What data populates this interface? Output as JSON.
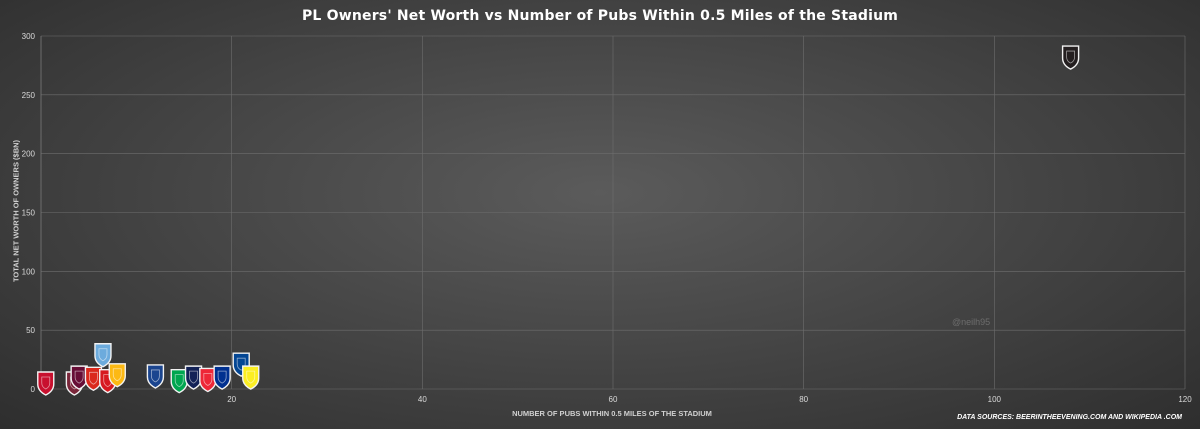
{
  "chart_data": {
    "type": "scatter",
    "title": "PL Owners' Net Worth vs Number of Pubs Within 0.5 Miles of the Stadium",
    "xlabel": "NUMBER OF PUBS WITHIN 0.5 MILES OF THE STADIUM",
    "ylabel": "TOTAL NET WORTH OF OWNERS ($BN)",
    "xlim": [
      0,
      120
    ],
    "ylim": [
      0,
      300
    ],
    "x_ticks": [
      "20",
      "40",
      "60",
      "80",
      "100",
      "120"
    ],
    "y_ticks": [
      "0",
      "50",
      "100",
      "150",
      "200",
      "250",
      "300"
    ],
    "grid": true,
    "points": [
      {
        "x": 0.5,
        "y": 0,
        "color": "#c8102e",
        "icon": "club-crest-icon"
      },
      {
        "x": 3.5,
        "y": 0,
        "color": "#7a263a",
        "icon": "club-crest-icon"
      },
      {
        "x": 4,
        "y": 5,
        "color": "#670e36",
        "icon": "club-crest-icon"
      },
      {
        "x": 5.5,
        "y": 4,
        "color": "#da291c",
        "icon": "club-crest-icon"
      },
      {
        "x": 6.5,
        "y": 24,
        "color": "#6cabdd",
        "icon": "club-crest-icon"
      },
      {
        "x": 7,
        "y": 2,
        "color": "#d71920",
        "icon": "club-crest-icon"
      },
      {
        "x": 8,
        "y": 7,
        "color": "#fdb913",
        "icon": "club-crest-icon"
      },
      {
        "x": 12,
        "y": 6,
        "color": "#1b458f",
        "icon": "club-crest-icon"
      },
      {
        "x": 14.5,
        "y": 2,
        "color": "#00a650",
        "icon": "club-crest-icon"
      },
      {
        "x": 16,
        "y": 5,
        "color": "#132257",
        "icon": "club-crest-icon"
      },
      {
        "x": 17.5,
        "y": 3,
        "color": "#ee2737",
        "icon": "club-crest-icon"
      },
      {
        "x": 19,
        "y": 5,
        "color": "#003090",
        "icon": "club-crest-icon"
      },
      {
        "x": 21,
        "y": 16,
        "color": "#034694",
        "icon": "club-crest-icon"
      },
      {
        "x": 22,
        "y": 5,
        "color": "#fbee23",
        "icon": "club-crest-icon"
      },
      {
        "x": 108,
        "y": 277,
        "color": "#241f20",
        "icon": "club-crest-icon"
      }
    ]
  },
  "footer": {
    "sources": "DATA SOURCES: BEERINTHEEVENING.COM AND WIKIPEDIA .COM",
    "watermark": "@neilh95"
  }
}
